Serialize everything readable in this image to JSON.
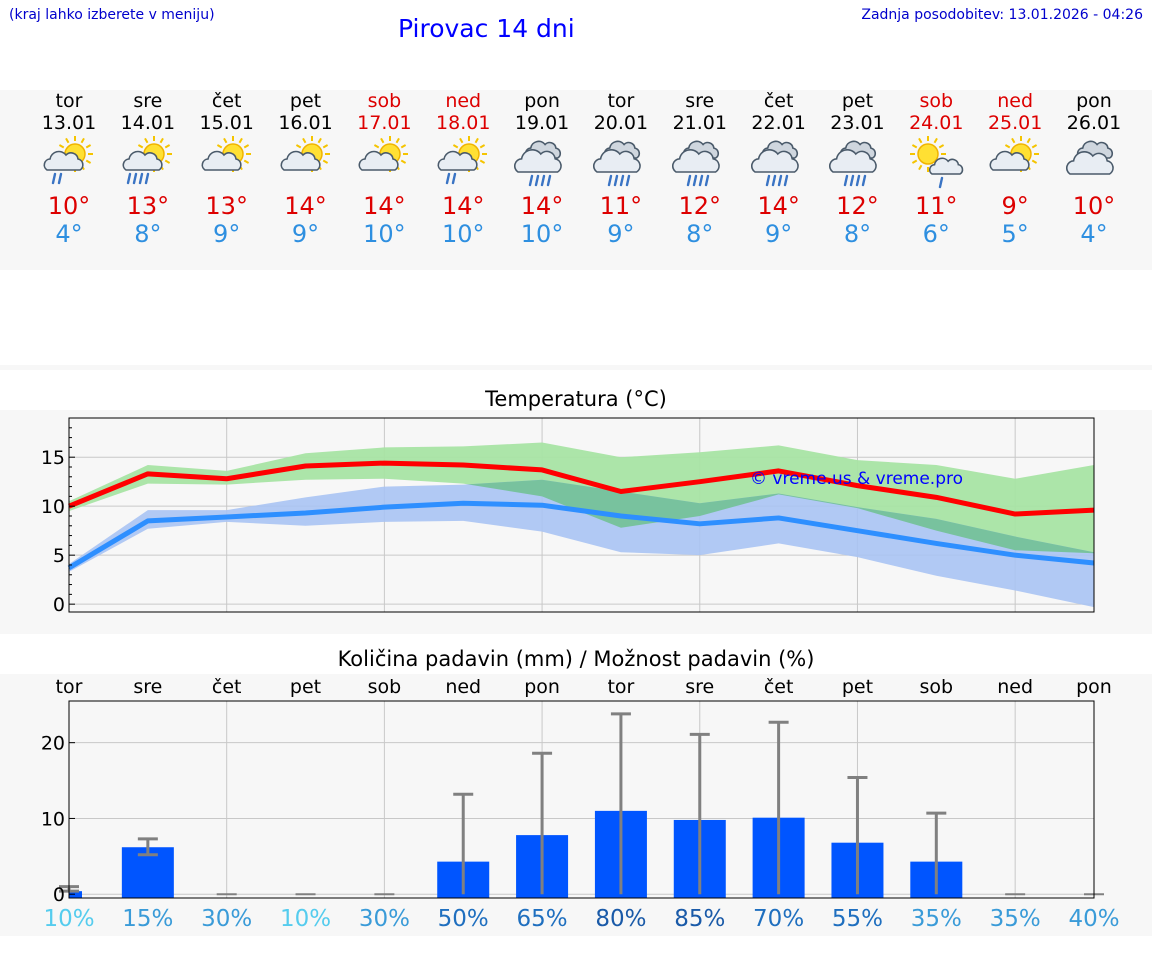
{
  "header": {
    "region_hint": "(kraj lahko izberete v meniju)",
    "title": "Pirovac 14 dni",
    "updated": "Zadnja posodobitev: 13.01.2026 - 04:26"
  },
  "colors": {
    "max_line": "#ff0000",
    "min_line": "#2e8fff",
    "max_band": "#a8e4a4",
    "min_band": "#a9c3f3",
    "overlap_band": "#78c29e",
    "precip_bar": "#0055ff",
    "error_bar": "#808080",
    "weekend_text": "#dd0000",
    "watermark": "#0000ff"
  },
  "days": [
    {
      "name": "tor",
      "date": "13.01",
      "weekend": false,
      "icon": "partly-cloudy-light-rain-icon",
      "max": "10°",
      "min": "4°"
    },
    {
      "name": "sre",
      "date": "14.01",
      "weekend": false,
      "icon": "partly-cloudy-rain-icon",
      "max": "13°",
      "min": "8°"
    },
    {
      "name": "čet",
      "date": "15.01",
      "weekend": false,
      "icon": "partly-cloudy-icon",
      "max": "13°",
      "min": "9°"
    },
    {
      "name": "pet",
      "date": "16.01",
      "weekend": false,
      "icon": "partly-cloudy-icon",
      "max": "14°",
      "min": "9°"
    },
    {
      "name": "sob",
      "date": "17.01",
      "weekend": true,
      "icon": "partly-cloudy-icon",
      "max": "14°",
      "min": "10°"
    },
    {
      "name": "ned",
      "date": "18.01",
      "weekend": true,
      "icon": "partly-cloudy-light-rain-icon",
      "max": "14°",
      "min": "10°"
    },
    {
      "name": "pon",
      "date": "19.01",
      "weekend": false,
      "icon": "cloudy-rain-icon",
      "max": "14°",
      "min": "10°"
    },
    {
      "name": "tor",
      "date": "20.01",
      "weekend": false,
      "icon": "cloudy-rain-icon",
      "max": "11°",
      "min": "9°"
    },
    {
      "name": "sre",
      "date": "21.01",
      "weekend": false,
      "icon": "cloudy-rain-icon",
      "max": "12°",
      "min": "8°"
    },
    {
      "name": "čet",
      "date": "22.01",
      "weekend": false,
      "icon": "cloudy-rain-icon",
      "max": "14°",
      "min": "9°"
    },
    {
      "name": "pet",
      "date": "23.01",
      "weekend": false,
      "icon": "cloudy-rain-icon",
      "max": "12°",
      "min": "8°"
    },
    {
      "name": "sob",
      "date": "24.01",
      "weekend": true,
      "icon": "sun-cloud-light-rain-icon",
      "max": "11°",
      "min": "6°"
    },
    {
      "name": "ned",
      "date": "25.01",
      "weekend": true,
      "icon": "partly-cloudy-icon",
      "max": "9°",
      "min": "5°"
    },
    {
      "name": "pon",
      "date": "26.01",
      "weekend": false,
      "icon": "cloudy-icon",
      "max": "10°",
      "min": "4°"
    }
  ],
  "chart_data": [
    {
      "type": "line",
      "title": "Temperatura (°C)",
      "watermark": "© vreme.us & vreme.pro",
      "x": [
        0,
        1,
        2,
        3,
        4,
        5,
        6,
        7,
        8,
        9,
        10,
        11,
        12,
        13
      ],
      "ylim": [
        -0.8,
        19
      ],
      "yticks": [
        0,
        5,
        10,
        15
      ],
      "grid": true,
      "series": [
        {
          "name": "max",
          "values": [
            10,
            13.3,
            12.8,
            14.1,
            14.4,
            14.2,
            13.7,
            11.5,
            12.5,
            13.6,
            12.1,
            10.9,
            9.2,
            9.6
          ],
          "band_low": [
            9.5,
            12.3,
            12.2,
            12.7,
            12.8,
            12.3,
            11.0,
            7.8,
            9.0,
            11.2,
            9.8,
            7.5,
            5.5,
            5.2
          ],
          "band_high": [
            10.5,
            14.2,
            13.6,
            15.4,
            16.0,
            16.1,
            16.5,
            15.0,
            15.5,
            16.2,
            14.7,
            14.2,
            12.8,
            14.2
          ]
        },
        {
          "name": "min",
          "values": [
            3.7,
            8.5,
            8.9,
            9.3,
            9.9,
            10.3,
            10.1,
            9.0,
            8.2,
            8.8,
            7.5,
            6.2,
            5.0,
            4.2
          ],
          "band_low": [
            3.3,
            7.7,
            8.4,
            8.0,
            8.4,
            8.5,
            7.4,
            5.3,
            5.0,
            6.2,
            4.8,
            2.9,
            1.4,
            -0.3
          ],
          "band_high": [
            4.1,
            9.6,
            9.6,
            10.9,
            12.0,
            12.2,
            12.7,
            11.5,
            10.3,
            11.3,
            9.9,
            8.7,
            6.9,
            5.3
          ]
        }
      ]
    },
    {
      "type": "bar",
      "title": "Količina padavin (mm) / Možnost padavin (%)",
      "categories": [
        "tor",
        "sre",
        "čet",
        "pet",
        "sob",
        "ned",
        "pon",
        "tor",
        "sre",
        "čet",
        "pet",
        "sob",
        "ned",
        "pon"
      ],
      "values": [
        0.4,
        6.2,
        0,
        0,
        0,
        4.3,
        7.8,
        11.0,
        9.8,
        10.1,
        6.8,
        4.3,
        0,
        0
      ],
      "err_low": [
        0.4,
        5.2,
        0,
        0,
        0,
        0,
        0,
        0,
        0,
        0,
        0,
        0,
        0,
        0
      ],
      "err_high": [
        1.0,
        7.3,
        0,
        0,
        0,
        13.2,
        18.6,
        23.8,
        21.1,
        22.7,
        15.4,
        10.7,
        0,
        0
      ],
      "probability": [
        "10%",
        "15%",
        "30%",
        "10%",
        "30%",
        "50%",
        "65%",
        "80%",
        "85%",
        "70%",
        "55%",
        "35%",
        "35%",
        "40%"
      ],
      "probability_colors": [
        "#55ccee",
        "#3a9bd8",
        "#3a9bd8",
        "#55ccee",
        "#3a9bd8",
        "#1f6fbf",
        "#1f6fbf",
        "#1a5aa8",
        "#1a5aa8",
        "#1f6fbf",
        "#1f6fbf",
        "#3a9bd8",
        "#3a9bd8",
        "#3a9bd8"
      ],
      "ylim": [
        -0.5,
        25.5
      ],
      "yticks": [
        0,
        10,
        20
      ],
      "grid": true
    }
  ]
}
